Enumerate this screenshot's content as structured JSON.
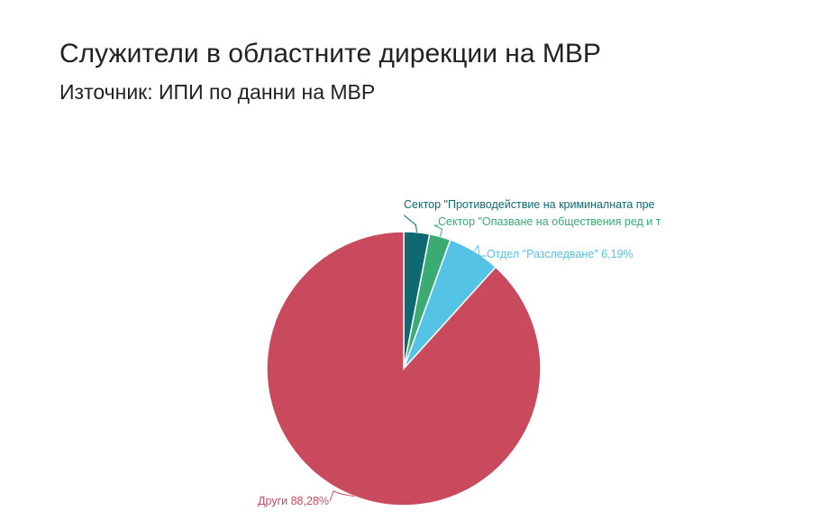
{
  "header": {
    "title": "Служители в областните дирекции на МВР",
    "subtitle": "Източник: ИПИ по данни на МВР"
  },
  "chart_data": {
    "type": "pie",
    "title": "Служители в областните дирекции на МВР",
    "subtitle": "Източник: ИПИ по данни на МВР",
    "slices": [
      {
        "label": "Сектор \"Противодействие на криминалната престъпност\"",
        "value": 3.03,
        "color": "#0e6973",
        "display": "Сектор \"Противодействие на криминалната пре"
      },
      {
        "label": "Сектор \"Опазване на обществения ред и транспорт\"",
        "value": 2.5,
        "color": "#3aab72",
        "display": "Сектор \"Опазване на обществения ред и т"
      },
      {
        "label": "Отдел \"Разследване\"",
        "value": 6.19,
        "color": "#54c3e6",
        "display": "Отдел \"Разследване\" 6,19%"
      },
      {
        "label": "Други",
        "value": 88.28,
        "color": "#c94a5c",
        "display": "Други 88,28%"
      }
    ]
  }
}
